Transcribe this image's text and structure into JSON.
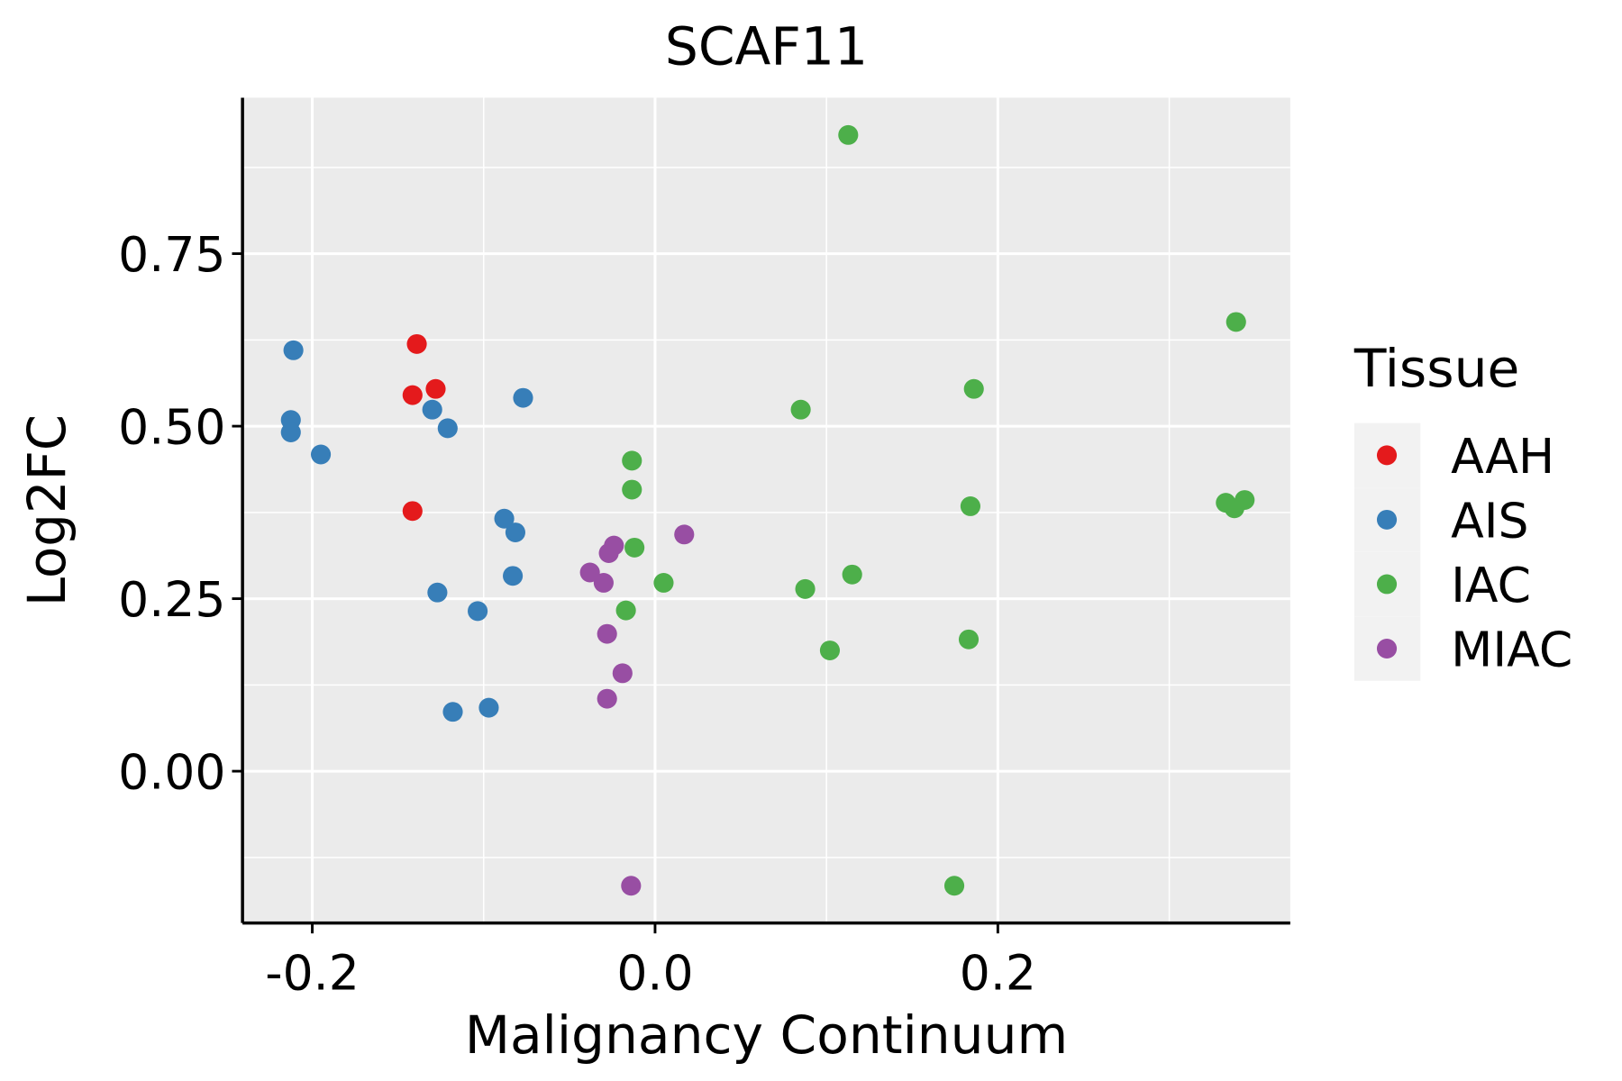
{
  "chart_data": {
    "type": "scatter",
    "title": "SCAF11",
    "xlabel": "Malignancy Continuum",
    "ylabel": "Log2FC",
    "xlim": [
      -0.2407,
      0.3706
    ],
    "ylim": [
      -0.22,
      0.976
    ],
    "xticks": [
      -0.2,
      0.0,
      0.2
    ],
    "xtick_labels": [
      "-0.2",
      "0.0",
      "0.2"
    ],
    "yticks": [
      0.0,
      0.25,
      0.5,
      0.75
    ],
    "ytick_labels": [
      "0.00",
      "0.25",
      "0.50",
      "0.75"
    ],
    "grid": true,
    "legend": {
      "title": "Tissue",
      "placement": "right"
    },
    "series": [
      {
        "name": "AAH",
        "color": "#E41A1C",
        "points": [
          [
            -0.139,
            0.619
          ],
          [
            -0.1415,
            0.545
          ],
          [
            -0.128,
            0.554
          ],
          [
            -0.1415,
            0.377
          ]
        ]
      },
      {
        "name": "AIS",
        "color": "#377EB8",
        "points": [
          [
            -0.211,
            0.61
          ],
          [
            -0.2125,
            0.509
          ],
          [
            -0.2125,
            0.491
          ],
          [
            -0.195,
            0.459
          ],
          [
            -0.13,
            0.524
          ],
          [
            -0.121,
            0.497
          ],
          [
            -0.077,
            0.541
          ],
          [
            -0.088,
            0.366
          ],
          [
            -0.0815,
            0.346
          ],
          [
            -0.083,
            0.283
          ],
          [
            -0.127,
            0.259
          ],
          [
            -0.1035,
            0.232
          ],
          [
            -0.118,
            0.086
          ],
          [
            -0.097,
            0.092
          ]
        ]
      },
      {
        "name": "IAC",
        "color": "#4DAF4A",
        "points": [
          [
            0.1127,
            0.922
          ],
          [
            0.339,
            0.651
          ],
          [
            0.186,
            0.554
          ],
          [
            0.085,
            0.524
          ],
          [
            -0.0135,
            0.45
          ],
          [
            -0.0135,
            0.408
          ],
          [
            -0.012,
            0.324
          ],
          [
            0.005,
            0.273
          ],
          [
            -0.017,
            0.233
          ],
          [
            0.0876,
            0.264
          ],
          [
            0.115,
            0.285
          ],
          [
            0.102,
            0.175
          ],
          [
            0.183,
            0.191
          ],
          [
            0.184,
            0.384
          ],
          [
            0.333,
            0.389
          ],
          [
            0.338,
            0.381
          ],
          [
            0.344,
            0.393
          ],
          [
            0.1746,
            -0.166
          ]
        ]
      },
      {
        "name": "MIAC",
        "color": "#984EA3",
        "points": [
          [
            0.017,
            0.343
          ],
          [
            -0.024,
            0.327
          ],
          [
            -0.027,
            0.316
          ],
          [
            -0.038,
            0.288
          ],
          [
            -0.03,
            0.273
          ],
          [
            -0.028,
            0.199
          ],
          [
            -0.019,
            0.142
          ],
          [
            -0.028,
            0.105
          ],
          [
            -0.014,
            -0.166
          ]
        ]
      }
    ]
  }
}
